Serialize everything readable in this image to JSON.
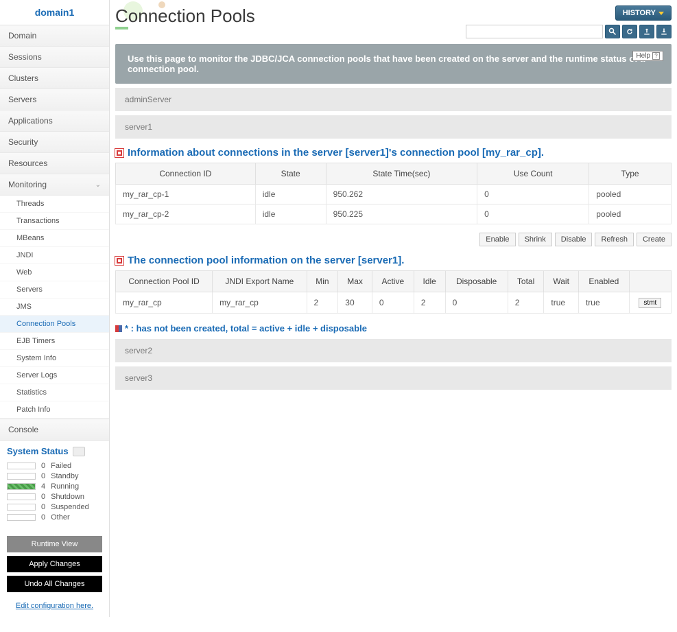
{
  "sidebar": {
    "domain": "domain1",
    "nav": [
      "Domain",
      "Sessions",
      "Clusters",
      "Servers",
      "Applications",
      "Security",
      "Resources"
    ],
    "monitoring_label": "Monitoring",
    "monitoring_items": [
      "Threads",
      "Transactions",
      "MBeans",
      "JNDI",
      "Web",
      "Servers",
      "JMS",
      "Connection Pools",
      "EJB Timers",
      "System Info",
      "Server Logs",
      "Statistics",
      "Patch Info"
    ],
    "active_sub": "Connection Pools",
    "console": "Console",
    "sys_status_title": "System Status",
    "statuses": [
      {
        "count": "0",
        "label": "Failed",
        "cls": ""
      },
      {
        "count": "0",
        "label": "Standby",
        "cls": ""
      },
      {
        "count": "4",
        "label": "Running",
        "cls": "running"
      },
      {
        "count": "0",
        "label": "Shutdown",
        "cls": ""
      },
      {
        "count": "0",
        "label": "Suspended",
        "cls": ""
      },
      {
        "count": "0",
        "label": "Other",
        "cls": ""
      }
    ],
    "btn_runtime": "Runtime View",
    "btn_apply": "Apply Changes",
    "btn_undo": "Undo All Changes",
    "edit_link": "Edit configuration here."
  },
  "header": {
    "title_prefix": "C",
    "title_rest": "onnection Pools",
    "history": "HISTORY",
    "banner": "Use this page to monitor the JDBC/JCA connection pools that have been created on the server and the runtime status of a connection pool.",
    "help": "Help"
  },
  "servers": {
    "admin": "adminServer",
    "expanded": "server1",
    "others": [
      "server2",
      "server3"
    ]
  },
  "section1": {
    "title": "Information about connections in the server [server1]'s connection pool [my_rar_cp].",
    "cols": [
      "Connection ID",
      "State",
      "State Time(sec)",
      "Use Count",
      "Type"
    ],
    "rows": [
      [
        "my_rar_cp-1",
        "idle",
        "950.262",
        "0",
        "pooled"
      ],
      [
        "my_rar_cp-2",
        "idle",
        "950.225",
        "0",
        "pooled"
      ]
    ]
  },
  "actions": [
    "Enable",
    "Shrink",
    "Disable",
    "Refresh",
    "Create"
  ],
  "section2": {
    "title": "The connection pool information on the server [server1].",
    "cols": [
      "Connection Pool ID",
      "JNDI Export Name",
      "Min",
      "Max",
      "Active",
      "Idle",
      "Disposable",
      "Total",
      "Wait",
      "Enabled",
      ""
    ],
    "row": [
      "my_rar_cp",
      "my_rar_cp",
      "2",
      "30",
      "0",
      "2",
      "0",
      "2",
      "true",
      "true"
    ],
    "stmt": "stmt"
  },
  "legend": "* : has not been created, total = active + idle + disposable"
}
